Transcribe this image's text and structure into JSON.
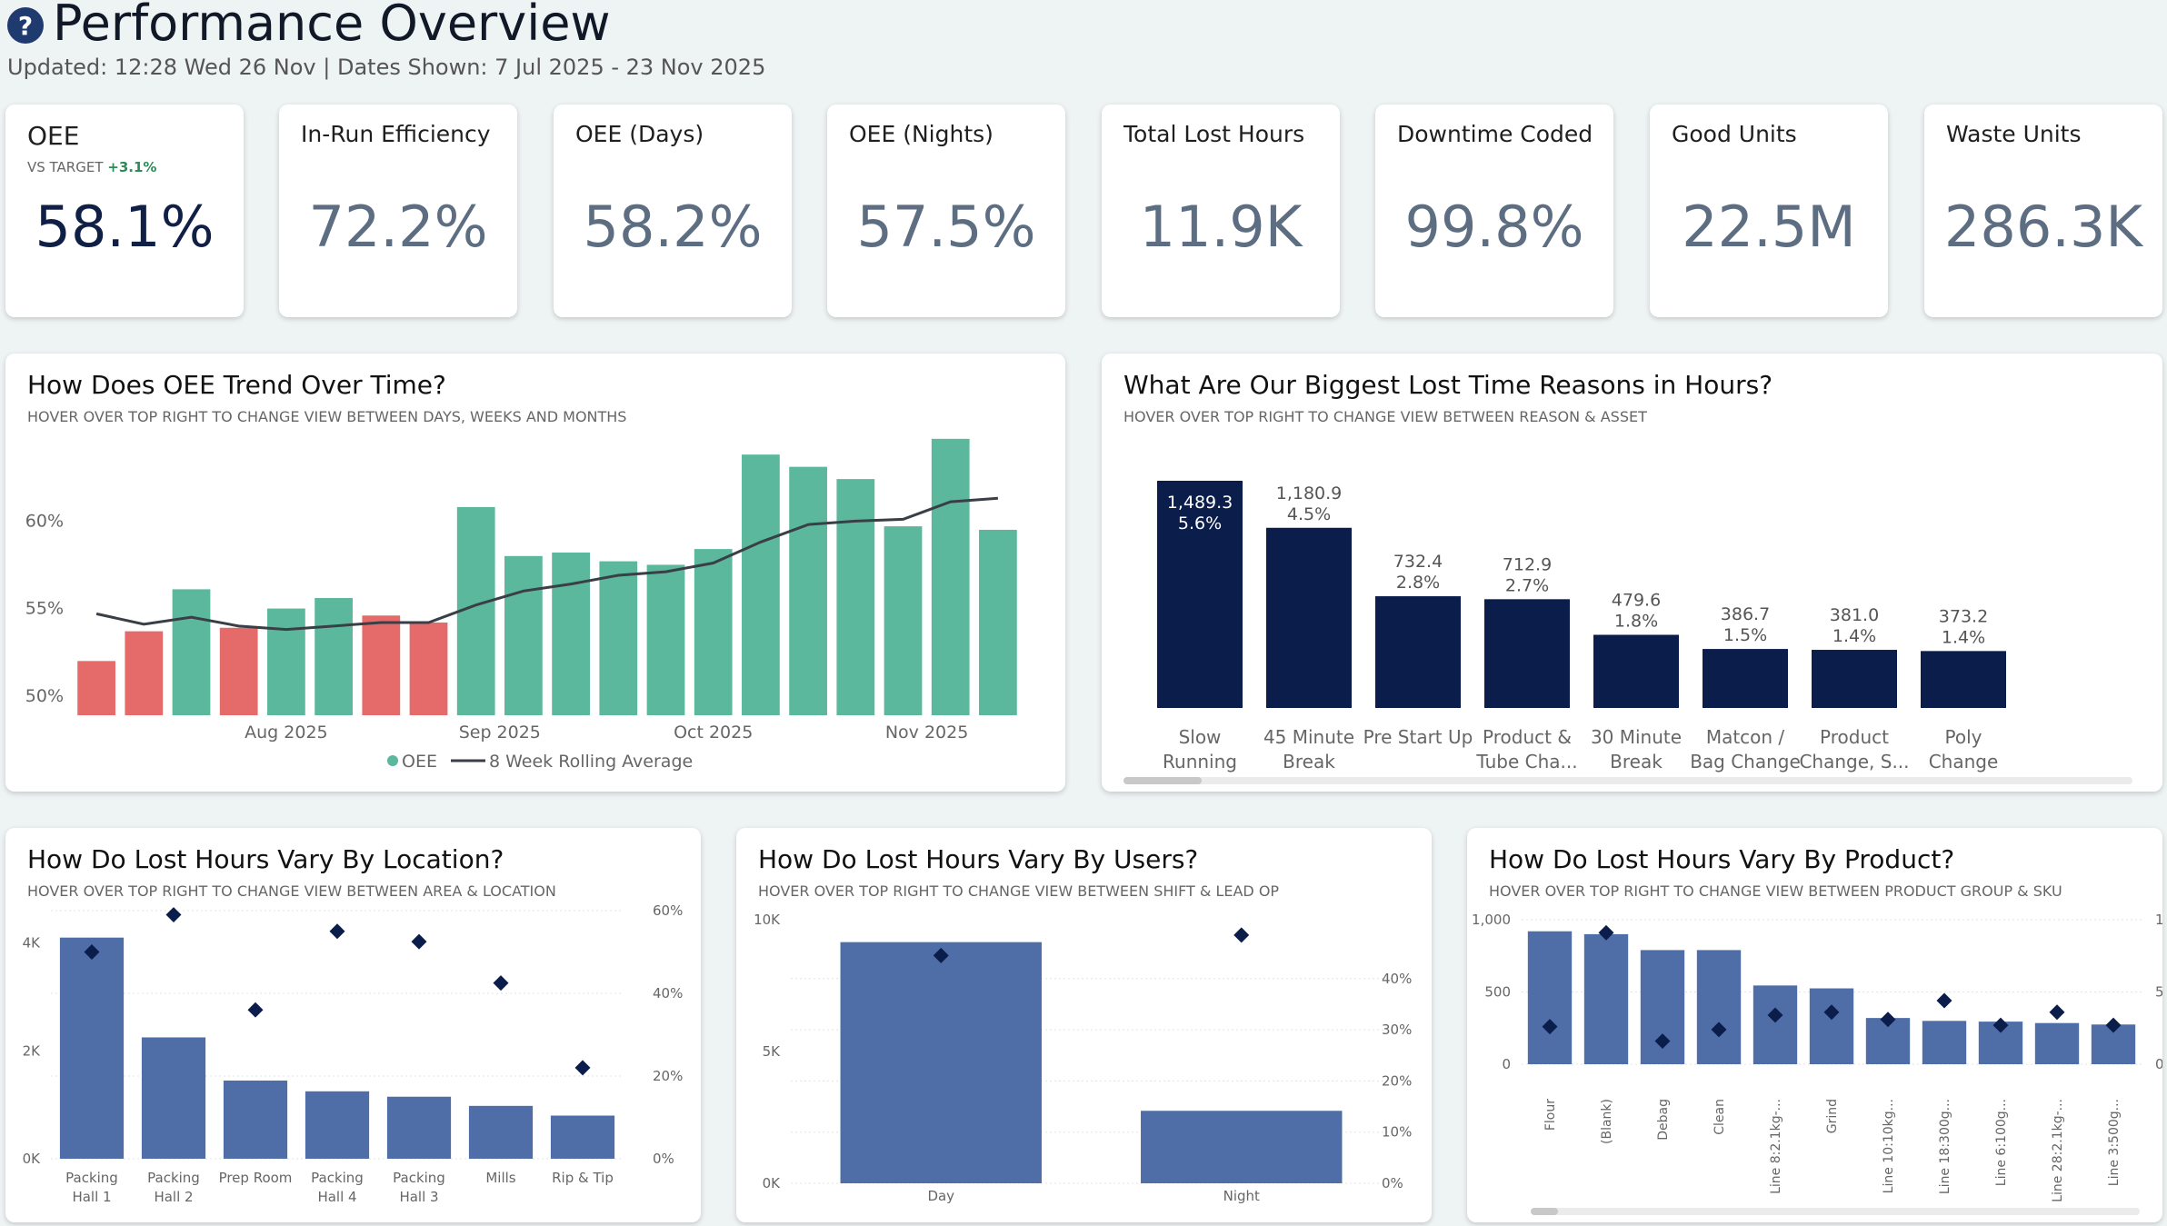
{
  "header": {
    "title": "Performance Overview",
    "subtitle": "Updated: 12:28 Wed 26 Nov | Dates Shown: 7 Jul 2025 - 23 Nov 2025",
    "help_icon": "?"
  },
  "kpis": [
    {
      "label": "OEE",
      "value": "58.1%",
      "target_label": "VS TARGET",
      "target_delta": "+3.1%"
    },
    {
      "label": "In-Run Efficiency",
      "value": "72.2%"
    },
    {
      "label": "OEE (Days)",
      "value": "58.2%"
    },
    {
      "label": "OEE (Nights)",
      "value": "57.5%"
    },
    {
      "label": "Total Lost Hours",
      "value": "11.9K"
    },
    {
      "label": "Downtime Coded",
      "value": "99.8%"
    },
    {
      "label": "Good Units",
      "value": "22.5M"
    },
    {
      "label": "Waste Units",
      "value": "286.3K"
    }
  ],
  "colors": {
    "oee_above": "#5cb89c",
    "oee_below": "#e56b6b",
    "navy": "#0b1d4a",
    "blue_bar": "#4f6ea8",
    "marker": "#0b1d4a"
  },
  "chart_data": [
    {
      "id": "oee-trend",
      "type": "bar",
      "title": "How Does OEE Trend Over Time?",
      "subtitle": "HOVER OVER TOP RIGHT TO CHANGE VIEW BETWEEN DAYS, WEEKS AND MONTHS",
      "x_ticks": [
        "Aug 2025",
        "Sep 2025",
        "Oct 2025",
        "Nov 2025"
      ],
      "x_tick_index": [
        4.5,
        9,
        13.5,
        18
      ],
      "y_ticks": [
        "60%",
        "55%",
        "50%"
      ],
      "y_tick_values": [
        60,
        55,
        50
      ],
      "ylim": [
        48.9,
        64.9
      ],
      "legend": [
        "OEE",
        "8 Week Rolling Average"
      ],
      "target": 55,
      "series": [
        {
          "name": "OEE",
          "values": [
            52.0,
            53.7,
            56.1,
            53.9,
            55.0,
            55.6,
            54.6,
            54.2,
            60.8,
            58.0,
            58.2,
            57.7,
            57.5,
            58.4,
            63.8,
            63.1,
            62.4,
            59.7,
            64.7,
            59.5
          ]
        },
        {
          "name": "8 Week Rolling Average",
          "values": [
            54.7,
            54.1,
            54.5,
            54.0,
            53.8,
            54.0,
            54.2,
            54.2,
            55.2,
            56.0,
            56.4,
            56.9,
            57.1,
            57.6,
            58.8,
            59.8,
            60.0,
            60.1,
            61.1,
            61.3
          ]
        }
      ]
    },
    {
      "id": "lost-reasons",
      "type": "bar",
      "title": "What Are Our Biggest Lost Time Reasons in Hours?",
      "subtitle": "HOVER OVER TOP RIGHT TO CHANGE VIEW BETWEEN REASON & ASSET",
      "categories": [
        [
          "Slow",
          "Running"
        ],
        [
          "45 Minute",
          "Break"
        ],
        [
          "Pre Start Up"
        ],
        [
          "Product &",
          "Tube Cha..."
        ],
        [
          "30 Minute",
          "Break"
        ],
        [
          "Matcon /",
          "Bag Change"
        ],
        [
          "Product",
          "Change, S..."
        ],
        [
          "Poly",
          "Change"
        ]
      ],
      "values": [
        1489.3,
        1180.9,
        732.4,
        712.9,
        479.6,
        386.7,
        381.0,
        373.2
      ],
      "value_labels": [
        "1,489.3",
        "1,180.9",
        "732.4",
        "712.9",
        "479.6",
        "386.7",
        "381.0",
        "373.2"
      ],
      "pct_labels": [
        "5.6%",
        "4.5%",
        "2.8%",
        "2.7%",
        "1.8%",
        "1.5%",
        "1.4%",
        "1.4%"
      ],
      "ylim": [
        0,
        1489.3
      ]
    },
    {
      "id": "by-location",
      "type": "bar",
      "title": "How Do Lost Hours Vary By Location?",
      "subtitle": "HOVER OVER TOP RIGHT TO CHANGE VIEW BETWEEN AREA & LOCATION",
      "categories": [
        [
          "Packing",
          "Hall 1"
        ],
        [
          "Packing",
          "Hall 2"
        ],
        [
          "Prep Room"
        ],
        [
          "Packing",
          "Hall 4"
        ],
        [
          "Packing",
          "Hall 3"
        ],
        [
          "Mills"
        ],
        [
          "Rip & Tip"
        ]
      ],
      "values": [
        4100,
        2250,
        1450,
        1250,
        1150,
        980,
        800
      ],
      "markers": [
        50,
        59,
        36,
        55,
        52.5,
        42.5,
        22
      ],
      "y_ticks": [
        "4K",
        "2K",
        "0K"
      ],
      "y_tick_values": [
        4000,
        2000,
        0
      ],
      "ylim": [
        0,
        4600
      ],
      "y2_ticks": [
        "60%",
        "40%",
        "20%",
        "0%"
      ],
      "y2_tick_values": [
        60,
        40,
        20,
        0
      ],
      "y2lim": [
        0,
        60
      ]
    },
    {
      "id": "by-users",
      "type": "bar",
      "title": "How Do Lost Hours Vary By Users?",
      "subtitle": "HOVER OVER TOP RIGHT TO CHANGE VIEW BETWEEN SHIFT & LEAD OP",
      "categories": [
        [
          "Day"
        ],
        [
          "Night"
        ]
      ],
      "values": [
        9150,
        2750
      ],
      "markers": [
        44.5,
        48.5
      ],
      "y_ticks": [
        "10K",
        "5K",
        "0K"
      ],
      "y_tick_values": [
        10000,
        5000,
        0
      ],
      "ylim": [
        0,
        10000
      ],
      "y2_ticks": [
        "40%",
        "30%",
        "20%",
        "10%",
        "0%"
      ],
      "y2_tick_values": [
        40,
        30,
        20,
        10,
        0
      ],
      "y2lim": [
        0,
        51.5
      ]
    },
    {
      "id": "by-product",
      "type": "bar",
      "title": "How Do Lost Hours Vary By Product?",
      "subtitle": "HOVER OVER TOP RIGHT TO CHANGE VIEW BETWEEN PRODUCT GROUP & SKU",
      "categories": [
        "Flour",
        "(Blank)",
        "Debag",
        "Clean",
        "Line 8:2.1kg-...",
        "Grind",
        "Line 10:10kg...",
        "Line 18:300g...",
        "Line 6:100g...",
        "Line 28:2.1kg-...",
        "Line 3:500g..."
      ],
      "values": [
        920,
        900,
        790,
        790,
        545,
        525,
        320,
        300,
        295,
        285,
        275
      ],
      "markers": [
        26,
        91,
        16,
        24,
        34,
        36,
        31,
        44,
        27,
        36,
        27
      ],
      "y_ticks": [
        "1,000",
        "500",
        "0"
      ],
      "y_tick_values": [
        1000,
        500,
        0
      ],
      "ylim": [
        0,
        1000
      ],
      "y2_ticks": [
        "100%",
        "50%",
        "0%"
      ],
      "y2_tick_values": [
        100,
        50,
        0
      ],
      "y2lim": [
        0,
        100
      ]
    }
  ]
}
